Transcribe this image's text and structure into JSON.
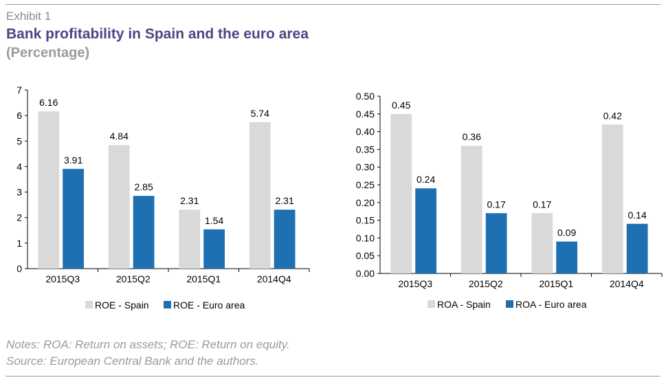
{
  "header": {
    "exhibit": "Exhibit 1",
    "title": "Bank profitability in Spain and the euro area",
    "subtitle": "(Percentage)"
  },
  "footer": {
    "notes": "Notes: ROA: Return on assets; ROE: Return on equity.",
    "source": "Source: European Central Bank and the authors."
  },
  "chart_data": [
    {
      "type": "bar",
      "categories": [
        "2015Q3",
        "2015Q2",
        "2015Q1",
        "2014Q4"
      ],
      "series": [
        {
          "name": "ROE - Spain",
          "values": [
            6.16,
            4.84,
            2.31,
            5.74
          ],
          "labels": [
            "6.16",
            "4.84",
            "2.31",
            "5.74"
          ],
          "color": "#d9d9d9"
        },
        {
          "name": "ROE - Euro area",
          "values": [
            3.91,
            2.85,
            1.54,
            2.31
          ],
          "labels": [
            "3.91",
            "2.85",
            "1.54",
            "2.31"
          ],
          "color": "#1f6fb3"
        }
      ],
      "ylim": [
        0,
        7
      ],
      "yticks": [
        "0",
        "1",
        "2",
        "3",
        "4",
        "5",
        "6",
        "7"
      ],
      "grid": false,
      "legend": "bottom"
    },
    {
      "type": "bar",
      "categories": [
        "2015Q3",
        "2015Q2",
        "2015Q1",
        "2014Q4"
      ],
      "series": [
        {
          "name": "ROA - Spain",
          "values": [
            0.45,
            0.36,
            0.17,
            0.42
          ],
          "labels": [
            "0.45",
            "0.36",
            "0.17",
            "0.42"
          ],
          "color": "#d9d9d9"
        },
        {
          "name": "ROA - Euro area",
          "values": [
            0.24,
            0.17,
            0.09,
            0.14
          ],
          "labels": [
            "0.24",
            "0.17",
            "0.09",
            "0.14"
          ],
          "color": "#1f6fb3"
        }
      ],
      "ylim": [
        0,
        0.5
      ],
      "yticks": [
        "0.00",
        "0.05",
        "0.10",
        "0.15",
        "0.20",
        "0.25",
        "0.30",
        "0.35",
        "0.40",
        "0.45",
        "0.50"
      ],
      "grid": false,
      "legend": "bottom"
    }
  ]
}
